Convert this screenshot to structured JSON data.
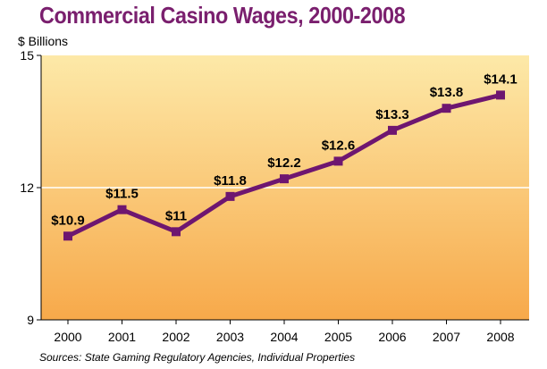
{
  "chart_data": {
    "type": "line",
    "title": "Commercial Casino Wages, 2000-2008",
    "ylabel": "$ Billions",
    "xlabel": "",
    "categories": [
      "2000",
      "2001",
      "2002",
      "2003",
      "2004",
      "2005",
      "2006",
      "2007",
      "2008"
    ],
    "series": [
      {
        "values": [
          10.9,
          11.5,
          11,
          11.8,
          12.2,
          12.6,
          13.3,
          13.8,
          14.1
        ],
        "labels": [
          "$10.9",
          "$11.5",
          "$11",
          "$11.8",
          "$12.2",
          "$12.6",
          "$13.3",
          "$13.8",
          "$14.1"
        ],
        "color": "#6e1670"
      }
    ],
    "ylim": [
      9,
      15
    ],
    "yticks": [
      "9",
      "12",
      "15"
    ],
    "grid": "horizontal line at 12",
    "source": "Sources: State Gaming Regulatory Agencies, Individual Properties",
    "colors": {
      "title": "#7a1f6e",
      "background_top": "#fde9a8",
      "background_bottom": "#f7a94a",
      "line": "#6e1670"
    }
  }
}
